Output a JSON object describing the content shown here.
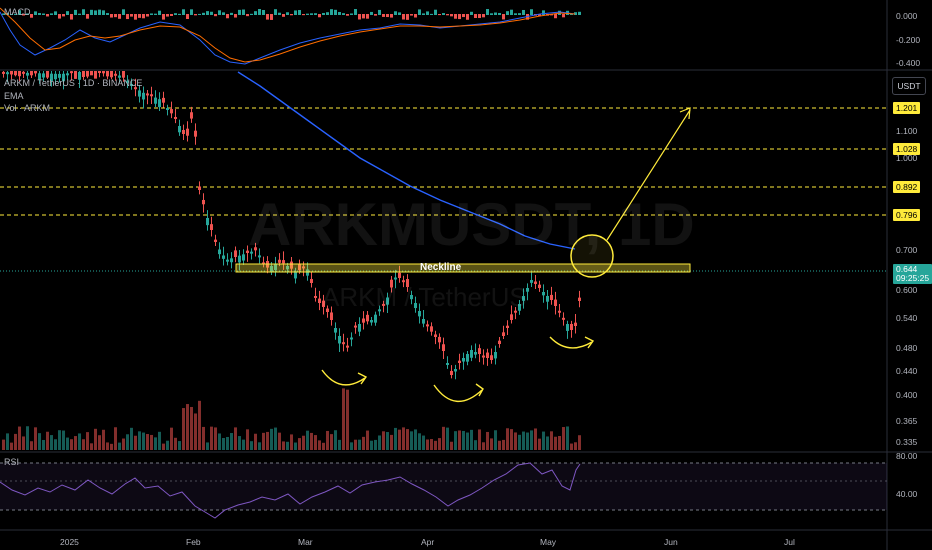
{
  "macd_pane": {
    "label": "MACD",
    "axis": [
      "0.000",
      "-0.200",
      "-0.400"
    ]
  },
  "main_pane": {
    "symbol_line": "ARKM / TetherUS · 1D · BINANCE",
    "ema_label": "EMA",
    "vol_label": "Vol · ARKM",
    "currency_button": "USDT",
    "watermark_symbol": "ARKMUSDT, 1D",
    "watermark_name": "ARKM / TetherUS",
    "neckline_label": "Neckline",
    "axis": [
      "1.100",
      "1.000",
      "0.700",
      "0.600",
      "0.540",
      "0.480",
      "0.440",
      "0.400",
      "0.365",
      "0.335"
    ],
    "level_tags": [
      "1.201",
      "1.028",
      "0.892",
      "0.796"
    ],
    "current_price": "0.644",
    "countdown": "09:25:25"
  },
  "rsi_pane": {
    "label": "RSI",
    "axis": [
      "80.00",
      "40.00"
    ]
  },
  "time_axis": [
    "2025",
    "Feb",
    "Mar",
    "Apr",
    "May",
    "Jun",
    "Jul"
  ],
  "colors": {
    "up": "#26a69a",
    "down": "#ef5350",
    "ema": "#2962ff",
    "annotation": "#ffeb3b",
    "rsi": "#7e57c2"
  },
  "chart_data": {
    "type": "candlestick",
    "symbol": "ARKMUSDT",
    "interval": "1D",
    "price_levels": [
      1.201,
      1.028,
      0.892,
      0.796
    ],
    "current_price": 0.644
  }
}
